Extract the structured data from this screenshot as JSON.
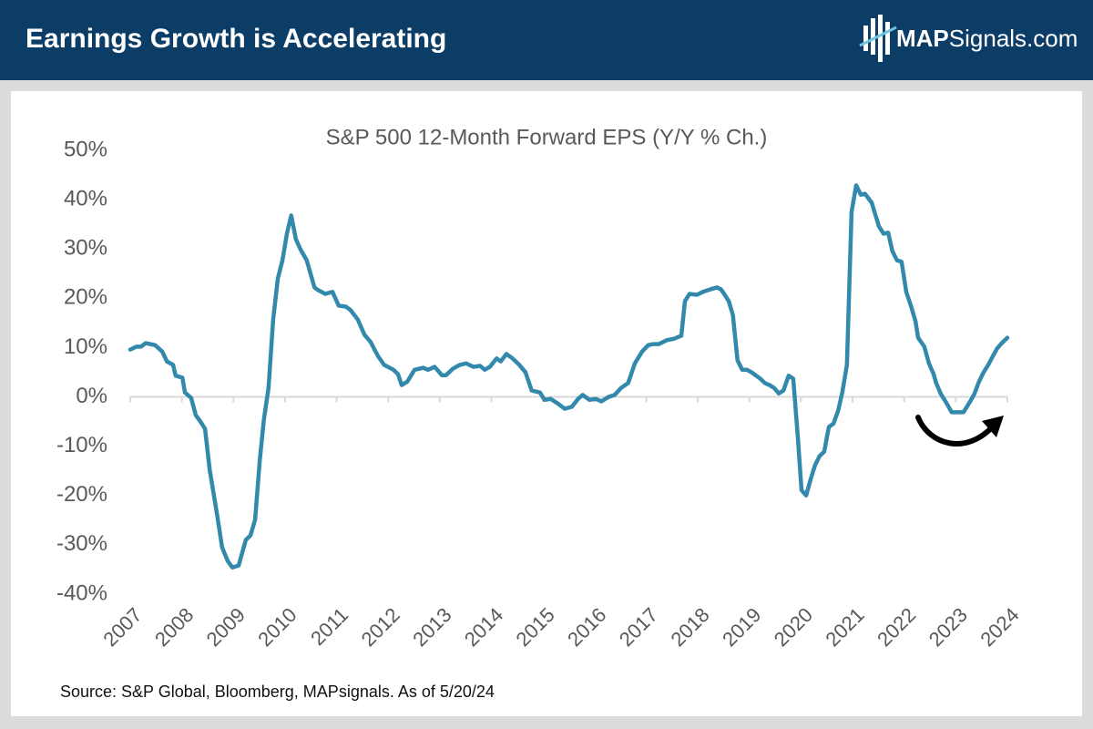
{
  "header": {
    "title": "Earnings Growth is Accelerating",
    "logo_bold": "MAP",
    "logo_rest": "Signals.com"
  },
  "footer": {
    "source": "Source: S&P Global, Bloomberg, MAPsignals. As of 5/20/24"
  },
  "chart_data": {
    "type": "line",
    "title": "S&P 500 12-Month Forward EPS (Y/Y % Ch.)",
    "xlim": [
      2007,
      2024
    ],
    "xticks": [
      2007,
      2008,
      2009,
      2010,
      2011,
      2012,
      2013,
      2014,
      2015,
      2016,
      2017,
      2018,
      2019,
      2020,
      2021,
      2022,
      2023,
      2024
    ],
    "ylim": [
      -40,
      50
    ],
    "yticks": [
      {
        "value": -40,
        "label": "-40%"
      },
      {
        "value": -30,
        "label": "-30%"
      },
      {
        "value": -20,
        "label": "-20%"
      },
      {
        "value": -10,
        "label": "-10%"
      },
      {
        "value": 0,
        "label": "0%"
      },
      {
        "value": 10,
        "label": "10%"
      },
      {
        "value": 20,
        "label": "20%"
      },
      {
        "value": 30,
        "label": "30%"
      },
      {
        "value": 40,
        "label": "40%"
      },
      {
        "value": 50,
        "label": "50%"
      }
    ],
    "grid": false,
    "x": [
      2007.0,
      2007.12,
      2007.21,
      2007.3,
      2007.48,
      2007.62,
      2007.71,
      2007.83,
      2007.88,
      2008.01,
      2008.06,
      2008.18,
      2008.27,
      2008.36,
      2008.45,
      2008.54,
      2008.68,
      2008.78,
      2008.89,
      2008.98,
      2009.1,
      2009.24,
      2009.33,
      2009.42,
      2009.51,
      2009.59,
      2009.68,
      2009.77,
      2009.86,
      2009.95,
      2010.04,
      2010.12,
      2010.21,
      2010.3,
      2010.42,
      2010.57,
      2010.65,
      2010.78,
      2010.92,
      2011.04,
      2011.18,
      2011.27,
      2011.41,
      2011.54,
      2011.66,
      2011.8,
      2011.92,
      2012.1,
      2012.19,
      2012.26,
      2012.37,
      2012.51,
      2012.68,
      2012.77,
      2012.9,
      2013.04,
      2013.12,
      2013.25,
      2013.39,
      2013.51,
      2013.65,
      2013.78,
      2013.87,
      2013.97,
      2014.1,
      2014.18,
      2014.29,
      2014.41,
      2014.54,
      2014.66,
      2014.78,
      2014.94,
      2015.03,
      2015.15,
      2015.28,
      2015.42,
      2015.56,
      2015.68,
      2015.77,
      2015.9,
      2016.02,
      2016.13,
      2016.27,
      2016.39,
      2016.51,
      2016.65,
      2016.78,
      2016.92,
      2017.04,
      2017.13,
      2017.24,
      2017.4,
      2017.54,
      2017.68,
      2017.75,
      2017.84,
      2017.98,
      2018.1,
      2018.24,
      2018.37,
      2018.45,
      2018.51,
      2018.6,
      2018.68,
      2018.77,
      2018.86,
      2018.95,
      2019.04,
      2019.21,
      2019.3,
      2019.39,
      2019.48,
      2019.57,
      2019.66,
      2019.76,
      2019.85,
      2019.94,
      2020.01,
      2020.1,
      2020.19,
      2020.27,
      2020.36,
      2020.45,
      2020.54,
      2020.63,
      2020.72,
      2020.8,
      2020.89,
      2020.98,
      2021.07,
      2021.16,
      2021.24,
      2021.37,
      2021.51,
      2021.6,
      2021.69,
      2021.77,
      2021.86,
      2021.95,
      2022.04,
      2022.13,
      2022.22,
      2022.27,
      2022.39,
      2022.48,
      2022.57,
      2022.62,
      2022.71,
      2022.8,
      2022.92,
      2023.05,
      2023.15,
      2023.28,
      2023.36,
      2023.45,
      2023.54,
      2023.63,
      2023.72,
      2023.8,
      2023.89,
      2024.0
    ],
    "series": [
      {
        "name": "S&P 500 12-Month Forward EPS Y/Y % Ch.",
        "color": "#3389ab",
        "values": [
          9.6,
          10.2,
          10.2,
          10.9,
          10.5,
          9.2,
          7.2,
          6.5,
          4.3,
          3.9,
          0.9,
          -0.2,
          -3.7,
          -5.0,
          -6.5,
          -14.8,
          -23.7,
          -30.5,
          -33.3,
          -34.6,
          -34.2,
          -29.0,
          -28.1,
          -24.9,
          -12.9,
          -4.6,
          1.8,
          15.7,
          24.0,
          27.7,
          33.3,
          36.8,
          32.0,
          29.9,
          27.7,
          22.2,
          21.6,
          20.9,
          21.3,
          18.5,
          18.3,
          17.6,
          15.7,
          12.6,
          11.1,
          8.3,
          6.5,
          5.5,
          4.6,
          2.4,
          3.1,
          5.5,
          5.9,
          5.5,
          6.1,
          4.4,
          4.4,
          5.7,
          6.5,
          6.8,
          6.1,
          6.3,
          5.5,
          6.1,
          7.8,
          7.2,
          8.7,
          7.8,
          6.5,
          5.0,
          1.3,
          0.9,
          -0.6,
          -0.4,
          -1.3,
          -2.4,
          -2.0,
          -0.4,
          0.4,
          -0.6,
          -0.4,
          -0.9,
          0,
          0.4,
          1.8,
          2.8,
          6.8,
          9.2,
          10.5,
          10.7,
          10.7,
          11.5,
          11.8,
          12.4,
          19.4,
          20.9,
          20.7,
          21.3,
          21.8,
          22.2,
          21.8,
          20.9,
          19.4,
          16.6,
          7.4,
          5.5,
          5.5,
          5.0,
          3.7,
          2.8,
          2.4,
          1.8,
          0.7,
          1.3,
          4.3,
          3.7,
          -8.3,
          -18.9,
          -20.0,
          -16.6,
          -13.9,
          -12.0,
          -11.1,
          -6.1,
          -5.4,
          -2.8,
          0.9,
          6.5,
          37.5,
          42.9,
          41.0,
          41.2,
          39.4,
          34.6,
          33.1,
          33.3,
          29.6,
          27.7,
          27.4,
          21.3,
          18.5,
          15.3,
          12.0,
          10.2,
          6.8,
          4.6,
          2.8,
          0.6,
          -0.9,
          -3.1,
          -3.1,
          -3.1,
          -0.9,
          0.6,
          3.1,
          5.0,
          6.5,
          8.3,
          9.8,
          10.9,
          12.0
        ]
      }
    ]
  }
}
